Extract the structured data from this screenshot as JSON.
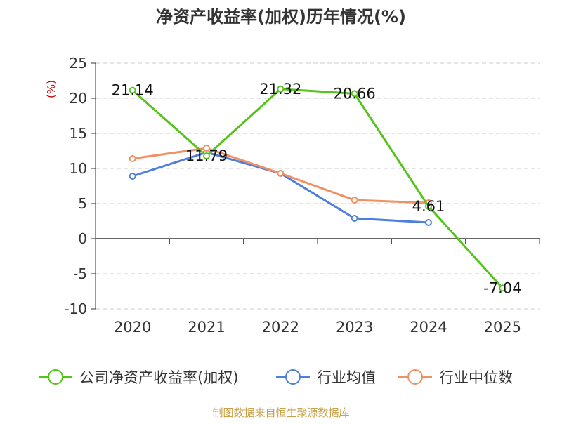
{
  "chart_data": {
    "type": "line",
    "title": "净资产收益率(加权)历年情况(%)",
    "ylabel": "(%)",
    "xlabel": "",
    "categories": [
      "2020",
      "2021",
      "2022",
      "2023",
      "2024",
      "2025"
    ],
    "ylim": [
      -10,
      25
    ],
    "yticks": [
      -10,
      -5,
      0,
      5,
      10,
      15,
      20,
      25
    ],
    "grid": true,
    "legend_position": "bottom",
    "series": [
      {
        "name": "公司净资产收益率(加权)",
        "color": "#52c41a",
        "values": [
          21.14,
          11.79,
          21.32,
          20.66,
          4.61,
          -7.04
        ],
        "labels": [
          "21.14",
          "11.79",
          "21.32",
          "20.66",
          "4.61",
          "-7.04"
        ]
      },
      {
        "name": "行业均值",
        "color": "#4f7fdc",
        "values": [
          8.9,
          12.3,
          9.3,
          2.9,
          2.3,
          null
        ]
      },
      {
        "name": "行业中位数",
        "color": "#f39063",
        "values": [
          11.4,
          12.9,
          9.3,
          5.5,
          5.1,
          null
        ]
      }
    ],
    "source": "制图数据来自恒生聚源数据库"
  },
  "colors": {
    "title": "#333333",
    "axis_label": "#cc0000",
    "source": "#c8a24a",
    "grid": "#cccccc",
    "axis": "#333333"
  }
}
